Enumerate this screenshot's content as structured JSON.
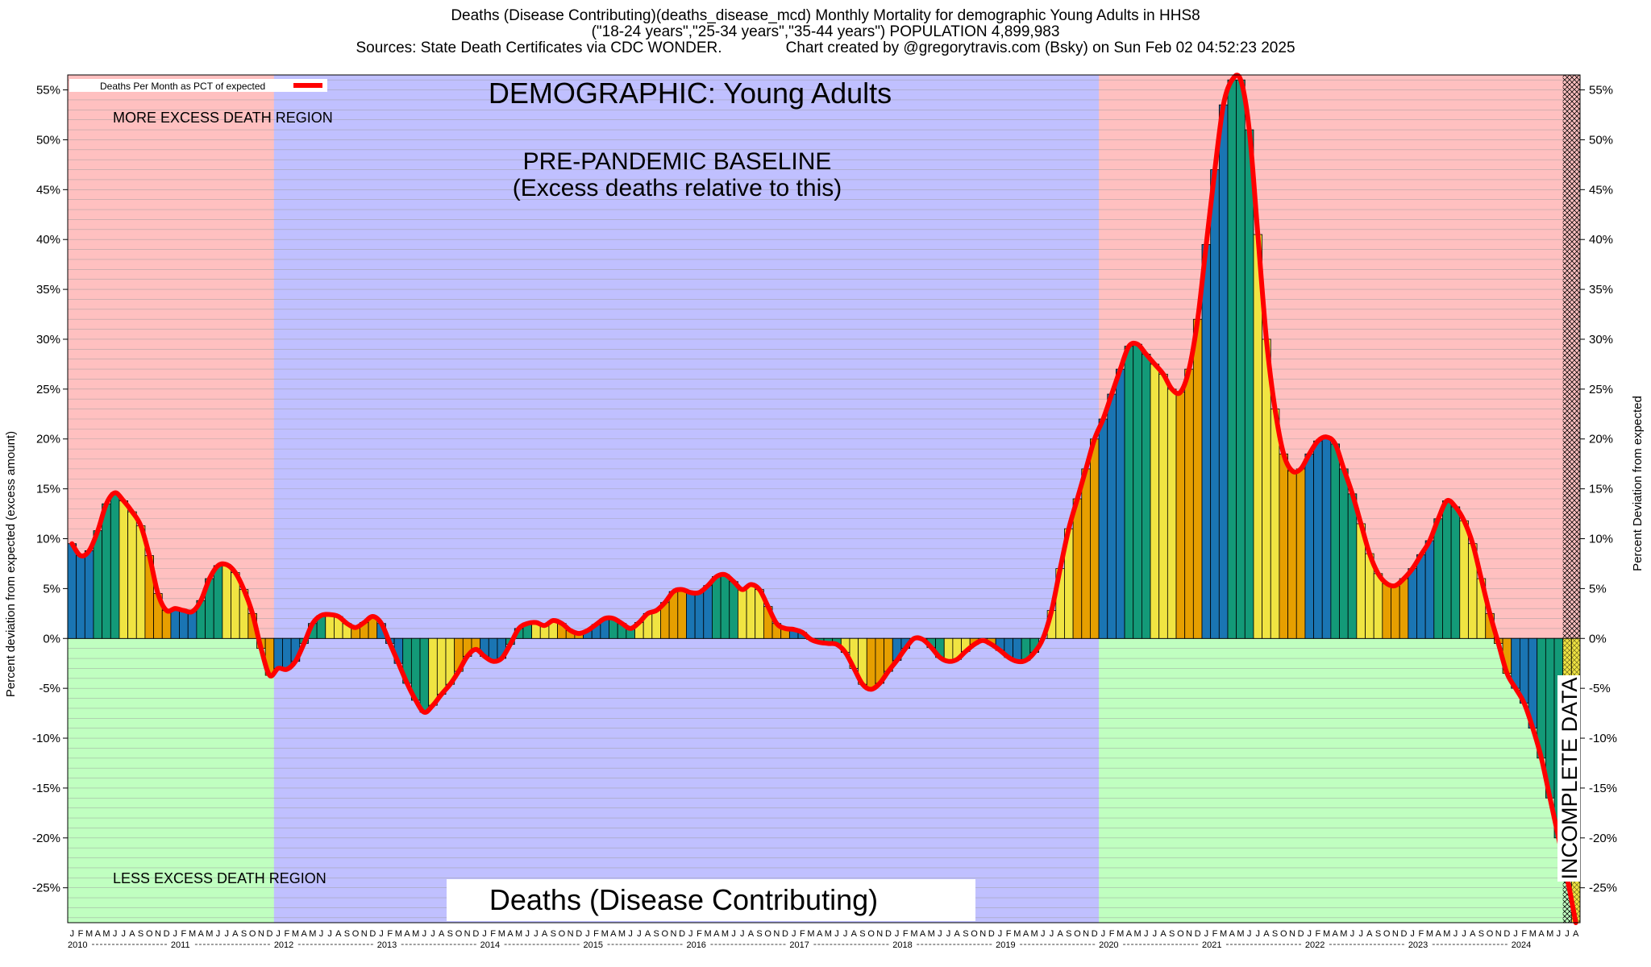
{
  "header": {
    "line1": "Deaths (Disease Contributing)(deaths_disease_mcd) Monthly Mortality for demographic Young Adults in HHS8",
    "line2": "(\"18-24 years\",\"25-34 years\",\"35-44 years\") POPULATION 4,899,983",
    "line3": "Sources: State Death Certificates via CDC WONDER.               Chart created by @gregorytravis.com (Bsky) on Sun Feb 02 04:52:23 2025"
  },
  "annotations": {
    "demographic": "DEMOGRAPHIC: Young Adults",
    "baseline_line1": "PRE-PANDEMIC BASELINE",
    "baseline_line2": "(Excess deaths relative to this)",
    "more_region": "MORE EXCESS DEATH REGION",
    "less_region": "LESS EXCESS DEATH REGION",
    "incomplete": "INCOMPLETE DATA",
    "bottom_title": "Deaths (Disease Contributing)"
  },
  "legend": {
    "label": "Deaths Per Month as PCT of expected",
    "line_color": "#ff0000"
  },
  "colors": {
    "more_region": "#ffc0c0",
    "less_region": "#c0ffc0",
    "baseline_region": "#c0c0ff",
    "line": "#ff0000",
    "bar_cycle": [
      "#1a75b3",
      "#139a78",
      "#f0e442",
      "#e69f00"
    ]
  },
  "chart_data": {
    "type": "bar",
    "title": "",
    "ylabel_left": "Percent deviation from expected (excess amount)",
    "ylabel_right": "Percent Deviation from expected",
    "ylim": [
      -28.5,
      56.5
    ],
    "yticks": [
      55,
      50,
      45,
      40,
      35,
      30,
      25,
      20,
      15,
      10,
      5,
      0,
      -5,
      -10,
      -15,
      -20,
      -25
    ],
    "ytick_labels": [
      "55%",
      "50%",
      "45%",
      "40%",
      "35%",
      "30%",
      "25%",
      "20%",
      "15%",
      "10%",
      "5%",
      "0%",
      "-5%",
      "-10%",
      "-15%",
      "-20%",
      "-25%"
    ],
    "start": "2010-01",
    "years": [
      "2010",
      "2011",
      "2012",
      "2013",
      "2014",
      "2015",
      "2016",
      "2017",
      "2018",
      "2019",
      "2020",
      "2021",
      "2022",
      "2023",
      "2024"
    ],
    "month_letters": [
      "J",
      "F",
      "M",
      "A",
      "M",
      "J",
      "J",
      "A",
      "S",
      "O",
      "N",
      "D"
    ],
    "regions": {
      "baseline_start": "2012-01",
      "baseline_end": "2019-12",
      "incomplete_start": "2024-07"
    },
    "grid": true,
    "legend_position": "top-left",
    "series": [
      {
        "values": [
          9.5,
          8.3,
          8.8,
          10.8,
          13.5,
          14.6,
          13.8,
          12.7,
          11.3,
          8.3,
          4.5,
          2.8,
          3.0,
          2.8,
          2.7,
          3.8,
          6.0,
          7.3,
          7.4,
          6.6,
          4.9,
          2.5,
          -1.0,
          -3.7,
          -3.0,
          -3.1,
          -2.3,
          -0.5,
          1.5,
          2.3,
          2.4,
          2.2,
          1.5,
          1.1,
          1.6,
          2.2,
          1.5,
          -0.5,
          -2.5,
          -4.5,
          -6.2,
          -7.4,
          -6.7,
          -5.6,
          -4.6,
          -3.3,
          -1.8,
          -1.1,
          -1.8,
          -2.3,
          -2.0,
          -0.6,
          1.0,
          1.5,
          1.6,
          1.3,
          1.8,
          1.5,
          0.8,
          0.5,
          0.8,
          1.4,
          2.0,
          2.0,
          1.5,
          1.0,
          1.6,
          2.5,
          2.8,
          3.6,
          4.7,
          4.9,
          4.6,
          4.6,
          5.3,
          6.2,
          6.4,
          5.7,
          4.9,
          5.4,
          4.9,
          3.2,
          1.5,
          1.0,
          0.9,
          0.6,
          -0.1,
          -0.4,
          -0.5,
          -0.6,
          -1.4,
          -3.0,
          -4.6,
          -5.1,
          -4.5,
          -3.3,
          -2.2,
          -1.0,
          0.0,
          -0.1,
          -0.9,
          -1.9,
          -2.3,
          -2.1,
          -1.3,
          -0.6,
          -0.2,
          -0.6,
          -1.2,
          -1.9,
          -2.3,
          -2.2,
          -1.4,
          0.0,
          2.8,
          7.0,
          11.0,
          14.0,
          17.0,
          20.0,
          22.0,
          24.5,
          27.0,
          29.3,
          29.5,
          28.5,
          27.5,
          26.5,
          25.0,
          24.7,
          27.0,
          32.0,
          39.5,
          47.0,
          53.5,
          56.0,
          56.0,
          51.0,
          40.5,
          30.0,
          23.0,
          18.5,
          16.8,
          17.0,
          18.5,
          19.8,
          20.2,
          19.5,
          17.0,
          14.5,
          11.5,
          8.5,
          6.5,
          5.5,
          5.3,
          6.0,
          7.0,
          8.4,
          9.8,
          12.0,
          13.8,
          13.2,
          11.8,
          9.5,
          6.0,
          2.5,
          -0.5,
          -3.5,
          -5.0,
          -6.5,
          -9.0,
          -12.0,
          -16.0,
          -20.0,
          -24.0,
          -28.5
        ]
      }
    ]
  }
}
